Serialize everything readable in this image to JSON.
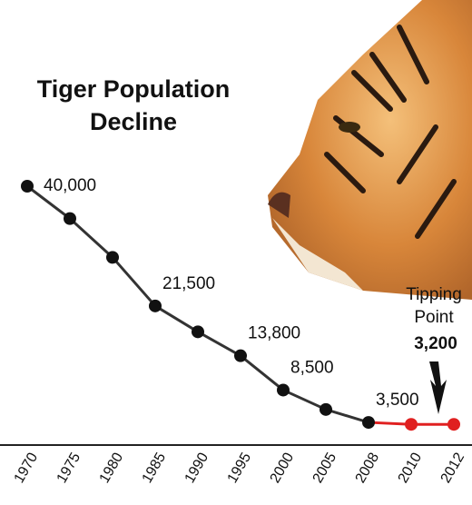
{
  "chart_data": {
    "type": "line",
    "title": [
      "Tiger Population",
      "Decline"
    ],
    "annotation": [
      "Tipping",
      "Point"
    ],
    "categories": [
      "1970",
      "1975",
      "1980",
      "1985",
      "1990",
      "1995",
      "2000",
      "2005",
      "2008",
      "2010",
      "2012"
    ],
    "values": [
      40000,
      35000,
      29000,
      21500,
      17500,
      13800,
      8500,
      5500,
      3500,
      3200,
      3200
    ],
    "value_labels": [
      "40,000",
      null,
      null,
      "21,500",
      null,
      "13,800",
      "8,500",
      null,
      "3,500",
      null,
      "3,200"
    ],
    "color": "#333333",
    "point_colors": [
      "#111111",
      "#111111",
      "#111111",
      "#111111",
      "#111111",
      "#111111",
      "#111111",
      "#111111",
      "#111111",
      "#e02020",
      "#e02020"
    ],
    "ylim": [
      0,
      40000
    ]
  }
}
